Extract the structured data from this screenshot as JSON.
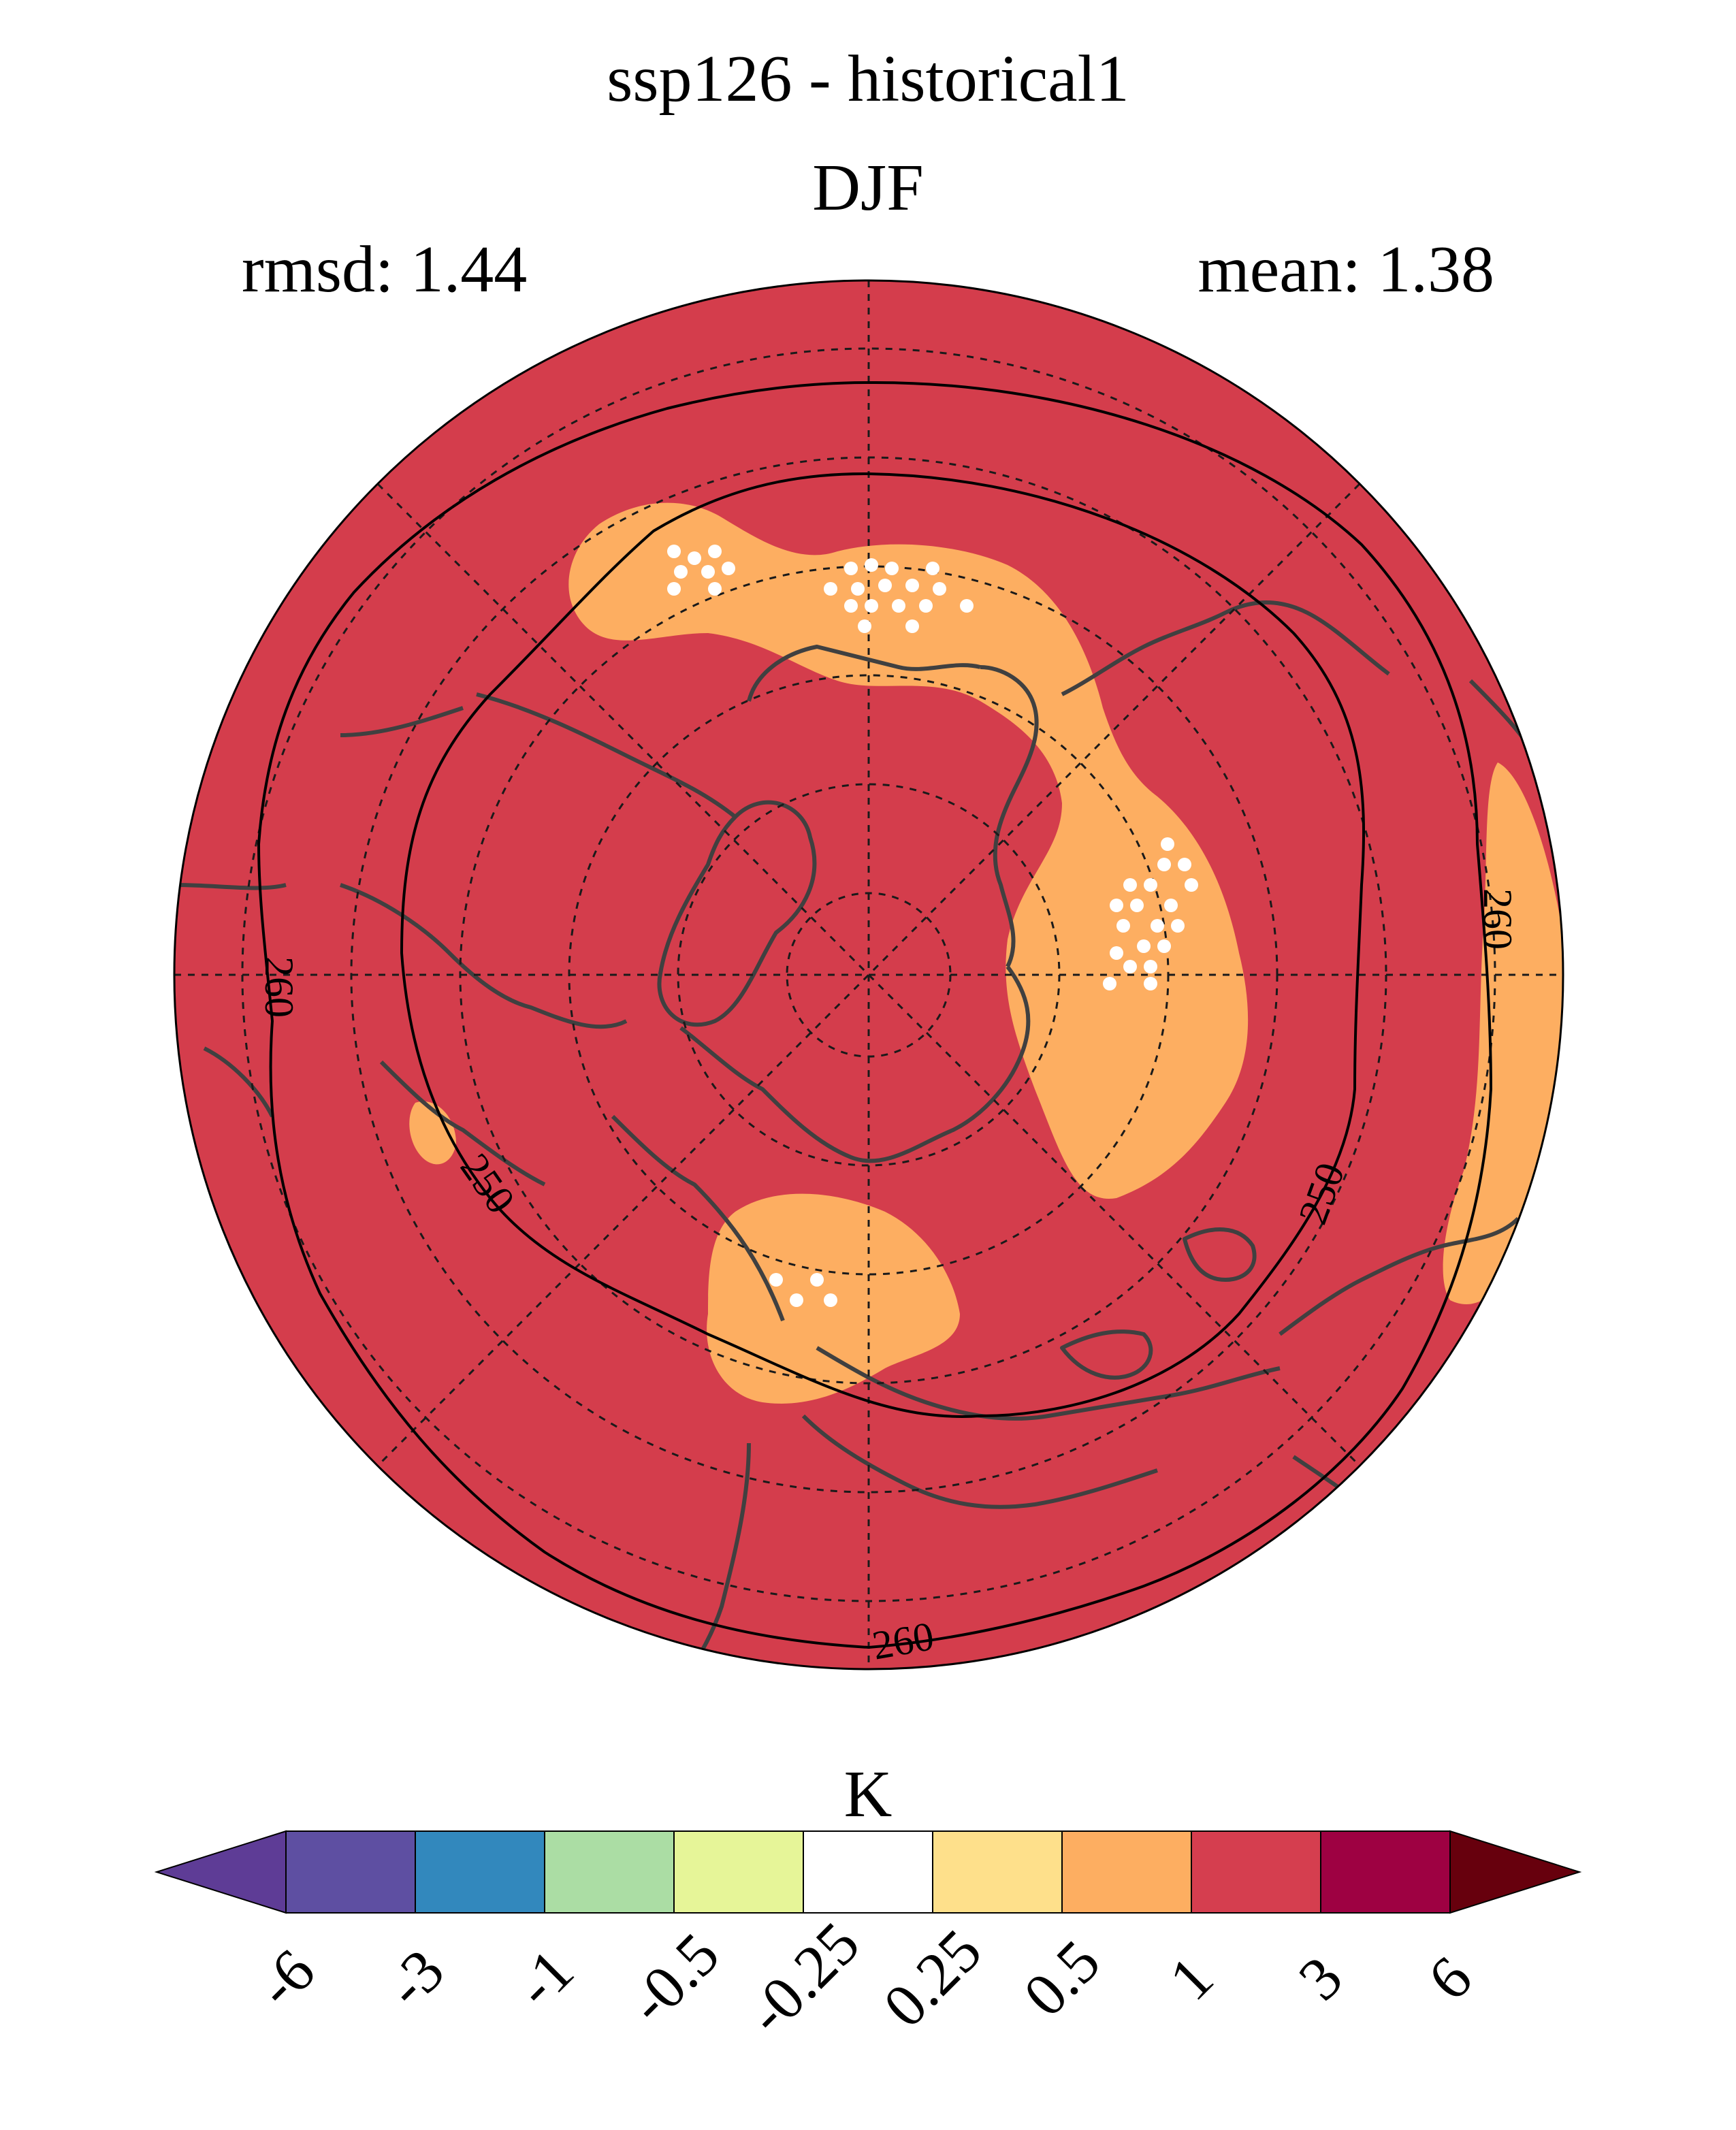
{
  "title": "ssp126 - historical1",
  "subtitle": "DJF",
  "stats": {
    "rmsd": "rmsd: 1.44",
    "mean": "mean: 1.38"
  },
  "map": {
    "projection": "north-polar-stereographic",
    "background_color": "#d43d4c",
    "contour_labels": [
      "260",
      "260",
      "260",
      "250",
      "250"
    ],
    "stippling_color": "#ffffff",
    "coastline_color": "#404040"
  },
  "colorbar": {
    "units": "K",
    "tick_labels": [
      "-6",
      "-3",
      "-1",
      "-0.5",
      "-0.25",
      "0.25",
      "0.5",
      "1",
      "3",
      "6"
    ],
    "colors": [
      "#5e3c96",
      "#5e4fa2",
      "#3288bd",
      "#abdda4",
      "#e6f598",
      "#ffffff",
      "#fee08b",
      "#fdae61",
      "#d53e4f",
      "#9e0142",
      "#67000d"
    ]
  }
}
